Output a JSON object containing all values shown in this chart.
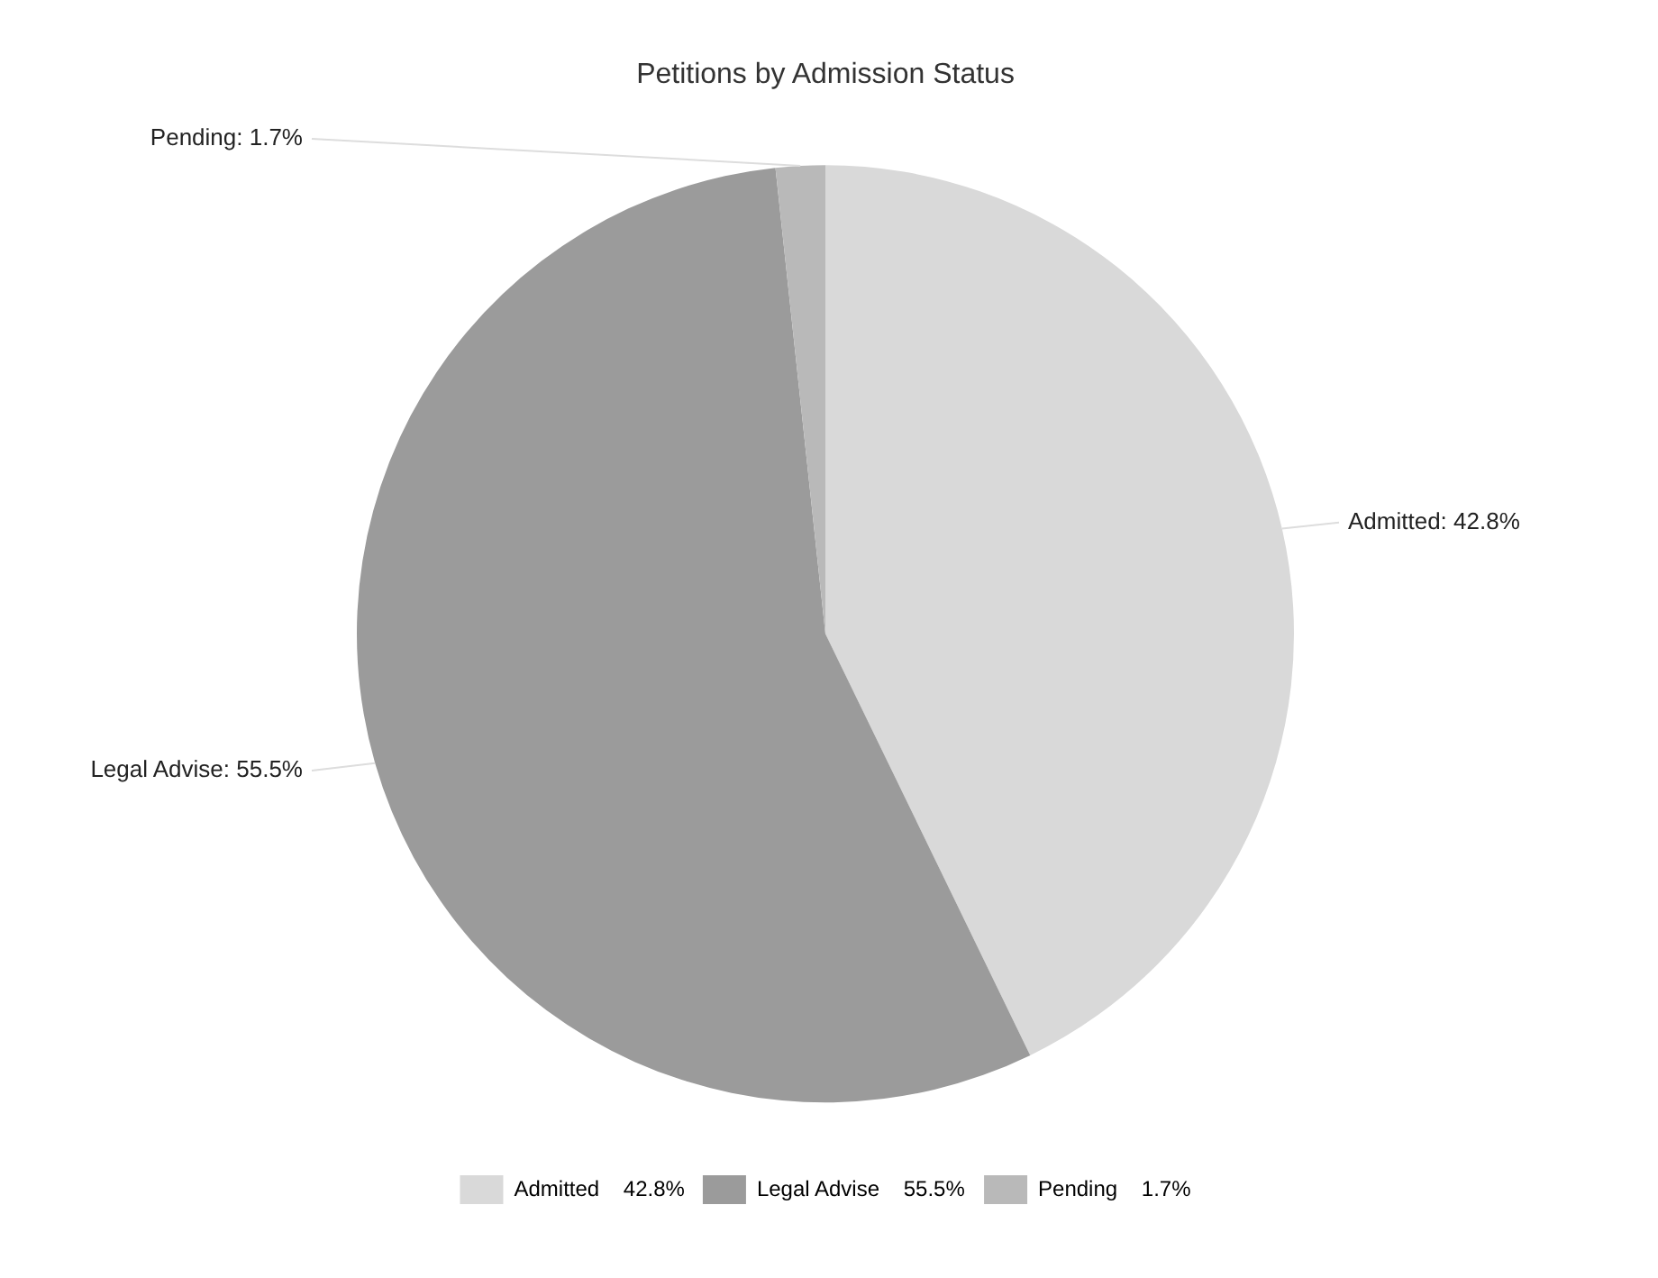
{
  "chart_data": {
    "type": "pie",
    "title": "Petitions by Admission Status",
    "categories": [
      "Admitted",
      "Legal Advise",
      "Pending"
    ],
    "values": [
      42.8,
      55.5,
      1.7
    ],
    "colors": [
      "#d9d9d9",
      "#9b9b9b",
      "#b9b9b9"
    ],
    "value_labels": [
      "42.8%",
      "55.5%",
      "1.7%"
    ],
    "legend": "bottom"
  }
}
